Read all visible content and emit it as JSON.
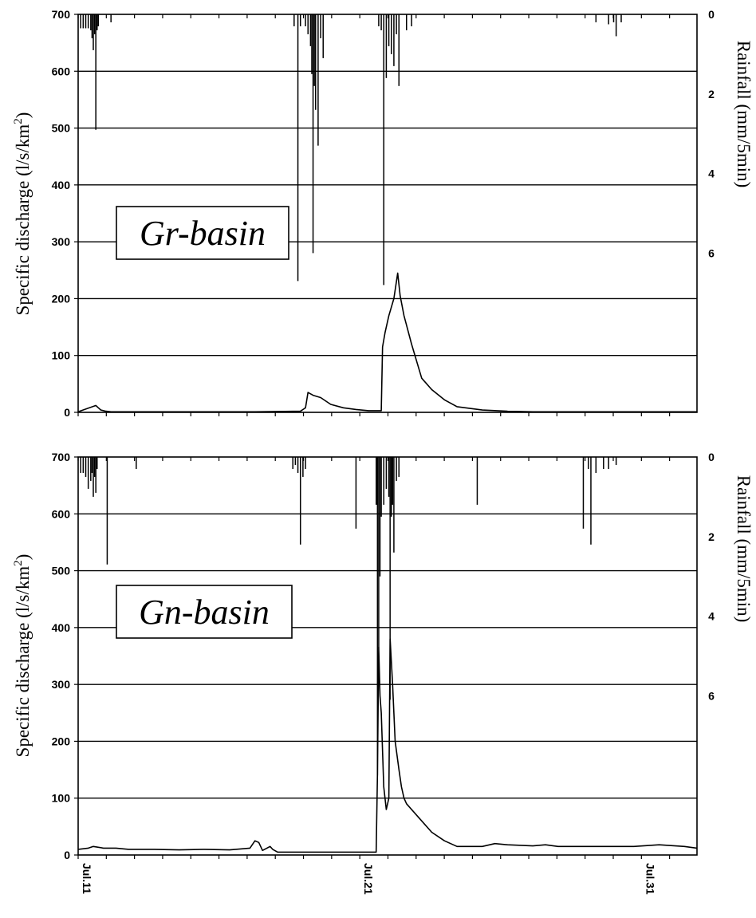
{
  "chart_data": [
    {
      "type": "line",
      "panel_label": "Gr-basin",
      "ylabel": "Specific discharge (l/s/km²)",
      "ylabel_parts": [
        "Specific discharge (l/s/km",
        "2",
        ")"
      ],
      "y2label": "Rainfall  (mm/5min)",
      "ylim": [
        0,
        700
      ],
      "yticks": [
        0,
        100,
        200,
        300,
        400,
        500,
        600,
        700
      ],
      "y2lim": [
        0,
        10
      ],
      "y2ticks": [
        0,
        2,
        4,
        6
      ],
      "y2_inverted": true,
      "xlim": [
        0,
        24.5
      ],
      "grid": "horizontal",
      "series": [
        {
          "kind": "line",
          "x": [
            0,
            0.7,
            0.8,
            0.9,
            1.1,
            1.3,
            1.6,
            3,
            5,
            7,
            8.8,
            9.0,
            9.1,
            9.3,
            9.6,
            10.0,
            10.5,
            11.0,
            11.5,
            12.0,
            12.05,
            12.15,
            12.3,
            12.5,
            12.65,
            12.75,
            12.9,
            13.2,
            13.6,
            14.0,
            14.5,
            15.0,
            16.0,
            17.0,
            18.0,
            20.0,
            22.0,
            24.5
          ],
          "y": [
            1,
            12,
            8,
            4,
            2,
            1,
            1,
            1,
            1,
            1,
            2,
            8,
            35,
            30,
            26,
            14,
            8,
            5,
            3,
            3,
            115,
            140,
            170,
            200,
            245,
            205,
            170,
            120,
            60,
            40,
            22,
            10,
            4,
            2,
            1,
            1,
            1,
            1
          ]
        },
        {
          "kind": "rain_bars",
          "x": [
            0.1,
            0.2,
            0.3,
            0.4,
            0.5,
            0.55,
            0.6,
            0.65,
            0.7,
            0.75,
            0.8,
            1.3,
            8.55,
            8.7,
            8.8,
            9.0,
            9.1,
            9.2,
            9.25,
            9.3,
            9.35,
            9.4,
            9.5,
            9.6,
            9.7,
            11.9,
            12.0,
            12.1,
            12.2,
            12.3,
            12.4,
            12.5,
            12.6,
            12.7,
            13.0,
            13.2,
            20.5,
            21.0,
            21.2,
            21.3,
            21.5
          ],
          "y": [
            0.35,
            0.35,
            0.35,
            0.35,
            0.4,
            0.6,
            0.9,
            0.5,
            2.9,
            0.4,
            0.3,
            0.2,
            0.3,
            6.7,
            0.3,
            0.3,
            0.5,
            0.8,
            1.5,
            6.0,
            1.8,
            2.4,
            3.3,
            0.6,
            1.1,
            0.3,
            0.4,
            6.8,
            1.6,
            0.8,
            1.0,
            1.3,
            0.5,
            1.8,
            0.4,
            0.3,
            0.2,
            0.25,
            0.2,
            0.55,
            0.2
          ]
        }
      ]
    },
    {
      "type": "line",
      "panel_label": "Gn-basin",
      "ylabel": "Specific discharge (l/s/km²)",
      "ylabel_parts": [
        "Specific discharge (l/s/km",
        "2",
        ")"
      ],
      "y2label": "Rainfall  (mm/5min)",
      "ylim": [
        0,
        700
      ],
      "yticks": [
        0,
        100,
        200,
        300,
        400,
        500,
        600,
        700
      ],
      "y2lim": [
        0,
        10
      ],
      "y2ticks": [
        0,
        2,
        4,
        6
      ],
      "y2_inverted": true,
      "xlim": [
        0,
        24.5
      ],
      "xticks": [
        "Jul.11",
        "Jul.21",
        "Jul.31"
      ],
      "xtick_values": [
        0,
        11.15,
        22.3
      ],
      "grid": "horizontal",
      "series": [
        {
          "kind": "line",
          "x": [
            0,
            0.4,
            0.6,
            1.0,
            1.5,
            2.0,
            3.0,
            4.0,
            5.0,
            6.0,
            6.8,
            7.0,
            7.15,
            7.3,
            7.6,
            7.7,
            7.9,
            8.2,
            9.0,
            10.0,
            11.0,
            11.8,
            11.85,
            11.9,
            11.95,
            12.0,
            12.1,
            12.2,
            12.3,
            12.35,
            12.45,
            12.55,
            12.7,
            12.8,
            12.9,
            13.0,
            13.5,
            14.0,
            14.5,
            15.0,
            16.0,
            16.5,
            17.0,
            18.0,
            18.5,
            19.0,
            20.0,
            21.0,
            22.0,
            23.0,
            24.0,
            24.5
          ],
          "y": [
            10,
            12,
            15,
            12,
            12,
            10,
            10,
            9,
            10,
            9,
            12,
            25,
            22,
            8,
            15,
            10,
            5,
            5,
            5,
            5,
            5,
            5,
            140,
            365,
            280,
            250,
            120,
            80,
            100,
            380,
            300,
            200,
            150,
            120,
            100,
            90,
            65,
            40,
            25,
            15,
            15,
            20,
            18,
            16,
            18,
            15,
            15,
            15,
            15,
            18,
            15,
            12
          ]
        },
        {
          "kind": "rain_bars",
          "x": [
            0.1,
            0.2,
            0.3,
            0.4,
            0.5,
            0.55,
            0.6,
            0.65,
            0.7,
            0.75,
            1.15,
            2.3,
            8.5,
            8.6,
            8.7,
            8.8,
            8.9,
            9.0,
            11.0,
            11.8,
            11.85,
            11.9,
            11.95,
            12.0,
            12.1,
            12.2,
            12.3,
            12.35,
            12.4,
            12.45,
            12.5,
            12.6,
            12.7,
            15.8,
            20.0,
            20.2,
            20.3,
            20.5,
            20.8,
            21.0,
            21.3
          ],
          "y": [
            0.4,
            0.4,
            0.5,
            0.8,
            0.6,
            0.4,
            1.0,
            0.5,
            0.9,
            0.3,
            2.7,
            0.3,
            0.3,
            0.2,
            0.4,
            2.2,
            0.5,
            0.3,
            1.8,
            1.2,
            8.0,
            4.8,
            3.0,
            1.5,
            1.2,
            0.8,
            1.0,
            6.1,
            1.5,
            1.2,
            2.4,
            0.6,
            0.5,
            1.2,
            1.8,
            0.3,
            2.2,
            0.4,
            0.3,
            0.3,
            0.2
          ]
        }
      ]
    }
  ]
}
